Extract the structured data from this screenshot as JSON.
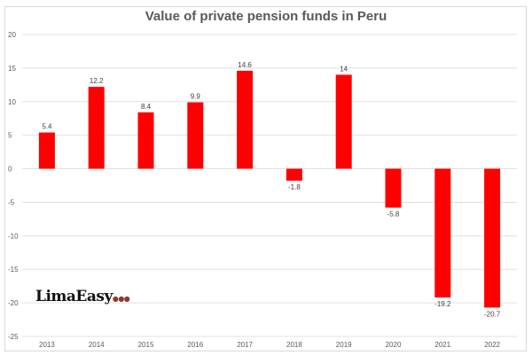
{
  "chart_data": {
    "type": "bar",
    "title": "Value of private pension funds in Peru",
    "categories": [
      "2013",
      "2014",
      "2015",
      "2016",
      "2017",
      "2018",
      "2019",
      "2020",
      "2021",
      "2022"
    ],
    "values": [
      5.4,
      12.2,
      8.4,
      9.9,
      14.6,
      -1.8,
      14,
      -5.8,
      -19.2,
      -20.7
    ],
    "data_labels": [
      "5.4",
      "12.2",
      "8.4",
      "9.9",
      "14.6",
      "-1.8",
      "14",
      "-5.8",
      "-19.2",
      "-20.7"
    ],
    "ylim": [
      -25,
      20
    ],
    "yticks": [
      20,
      15,
      10,
      5,
      0,
      -5,
      -10,
      -15,
      -20,
      -25
    ],
    "grid": true,
    "bar_color": "#ff0000",
    "xlabel": "",
    "ylabel": ""
  },
  "logo": {
    "text": "LimaEasy"
  }
}
